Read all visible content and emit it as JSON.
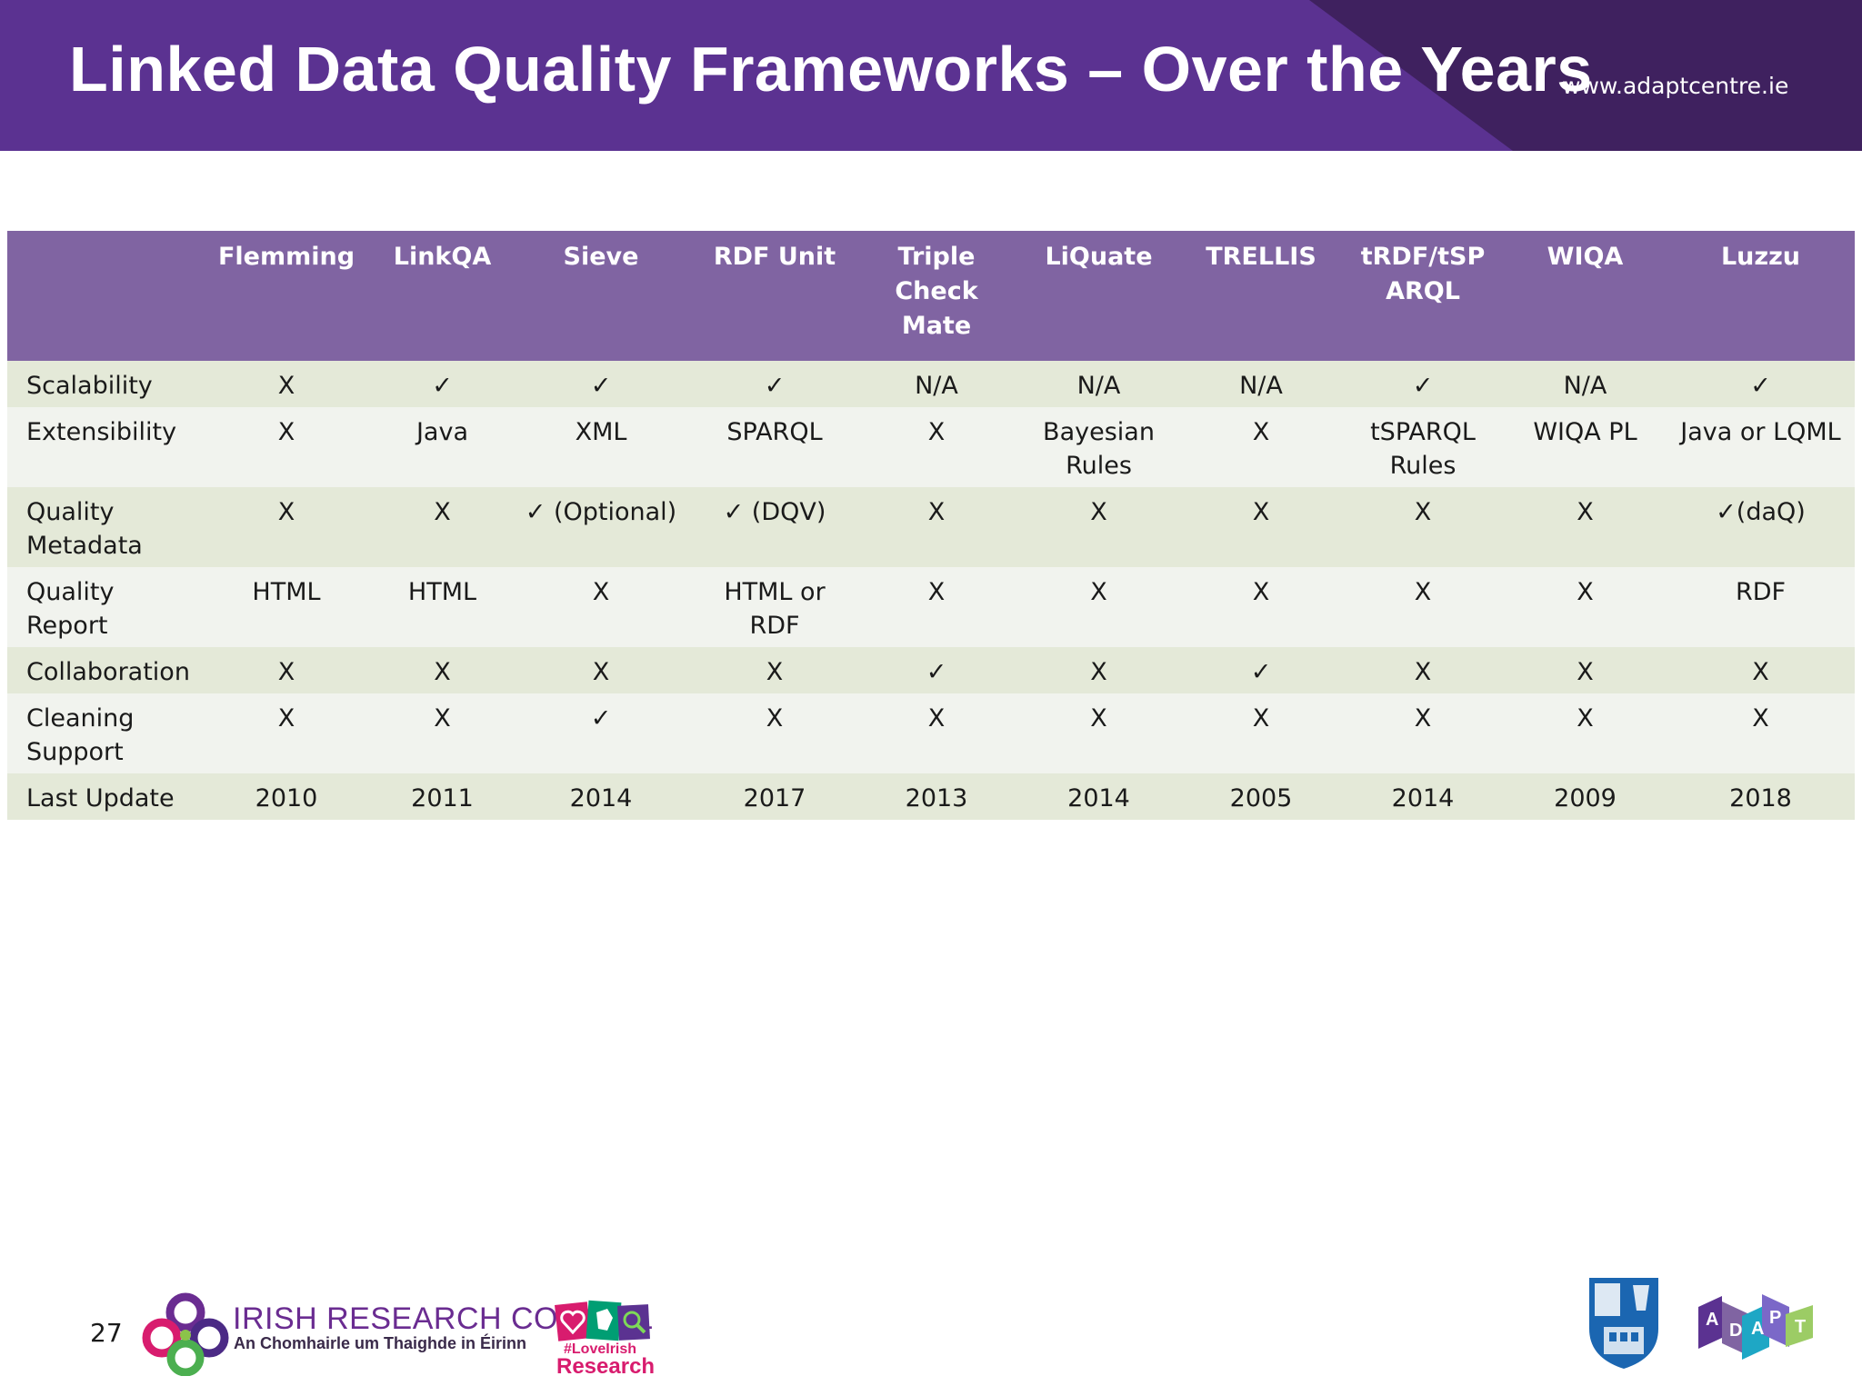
{
  "header": {
    "title": "Linked Data Quality Frameworks – Over the Years",
    "url": "www.adaptcentre.ie"
  },
  "table": {
    "columns": [
      "",
      "Flemming",
      "LinkQA",
      "Sieve",
      "RDF Unit",
      "Triple Check Mate",
      "LiQuate",
      "TRELLIS",
      "tRDF/tSP ARQL",
      "WIQA",
      "Luzzu"
    ],
    "rows": [
      {
        "label": "Scalability",
        "cells": [
          "X",
          "✓",
          "✓",
          "✓",
          "N/A",
          "N/A",
          "N/A",
          "✓",
          "N/A",
          "✓"
        ]
      },
      {
        "label": "Extensibility",
        "cells": [
          "X",
          "Java",
          "XML",
          "SPARQL",
          "X",
          "Bayesian Rules",
          "X",
          "tSPARQL Rules",
          "WIQA PL",
          "Java or LQML"
        ]
      },
      {
        "label": "Quality Metadata",
        "cells": [
          "X",
          "X",
          "✓ (Optional)",
          "✓ (DQV)",
          "X",
          "X",
          "X",
          "X",
          "X",
          "✓(daQ)"
        ]
      },
      {
        "label": "Quality Report",
        "cells": [
          "HTML",
          "HTML",
          "X",
          "HTML or RDF",
          "X",
          "X",
          "X",
          "X",
          "X",
          "RDF"
        ]
      },
      {
        "label": "Collaboration",
        "cells": [
          "X",
          "X",
          "X",
          "X",
          "✓",
          "X",
          "✓",
          "X",
          "X",
          "X"
        ]
      },
      {
        "label": "Cleaning Support",
        "cells": [
          "X",
          "X",
          "✓",
          "X",
          "X",
          "X",
          "X",
          "X",
          "X",
          "X"
        ]
      },
      {
        "label": "Last Update",
        "cells": [
          "2010",
          "2011",
          "2014",
          "2017",
          "2013",
          "2014",
          "2005",
          "2014",
          "2009",
          "2018"
        ]
      }
    ]
  },
  "footer": {
    "page_number": "27",
    "irc_name": "IRISH RESEARCH COUNCIL",
    "irc_subtitle": "An Chomhairle um Thaighde in Éirinn",
    "love_tag": "#LoveIrish",
    "love_research": "Research",
    "icons": [
      "irc-logo-icon",
      "love-irish-research-icon",
      "trinity-crest-icon",
      "adapt-logo-icon"
    ]
  },
  "colors": {
    "header_bg": "#5b3291",
    "table_header_bg": "#8064a2",
    "row_odd_bg": "#e4e9d8",
    "row_even_bg": "#f1f3ee"
  }
}
